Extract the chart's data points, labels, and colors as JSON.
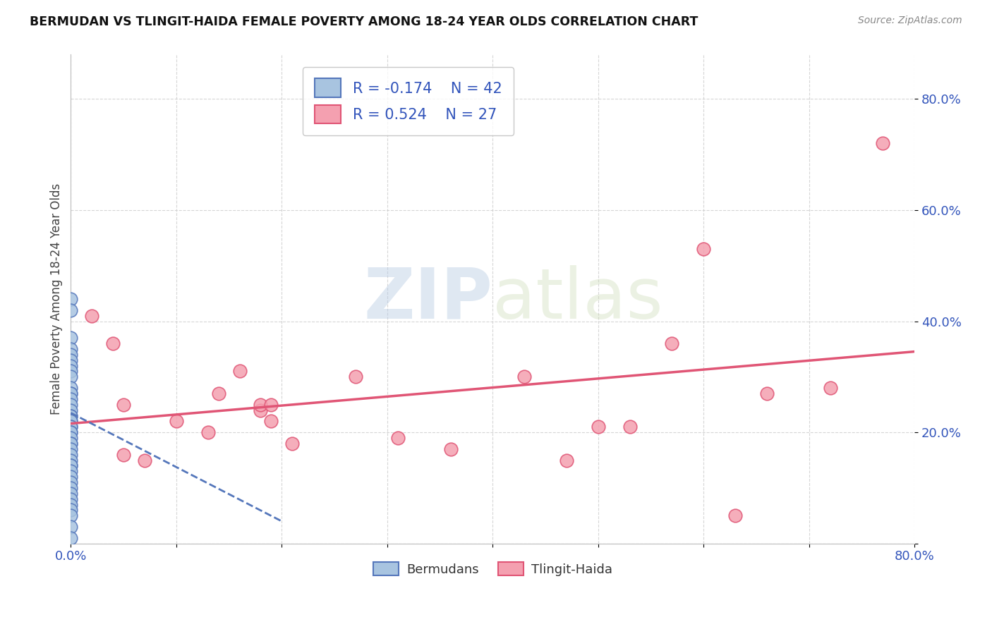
{
  "title": "BERMUDAN VS TLINGIT-HAIDA FEMALE POVERTY AMONG 18-24 YEAR OLDS CORRELATION CHART",
  "source": "Source: ZipAtlas.com",
  "ylabel": "Female Poverty Among 18-24 Year Olds",
  "xlim": [
    0.0,
    0.8
  ],
  "ylim": [
    0.0,
    0.88
  ],
  "xticks": [
    0.0,
    0.1,
    0.2,
    0.3,
    0.4,
    0.5,
    0.6,
    0.7,
    0.8
  ],
  "xticklabels": [
    "0.0%",
    "",
    "",
    "",
    "",
    "",
    "",
    "",
    "80.0%"
  ],
  "yticks": [
    0.0,
    0.2,
    0.4,
    0.6,
    0.8
  ],
  "yticklabels": [
    "",
    "20.0%",
    "40.0%",
    "60.0%",
    "80.0%"
  ],
  "bermudans_x": [
    0.0,
    0.0,
    0.0,
    0.0,
    0.0,
    0.0,
    0.0,
    0.0,
    0.0,
    0.0,
    0.0,
    0.0,
    0.0,
    0.0,
    0.0,
    0.0,
    0.0,
    0.0,
    0.0,
    0.0,
    0.0,
    0.0,
    0.0,
    0.0,
    0.0,
    0.0,
    0.0,
    0.0,
    0.0,
    0.0,
    0.0,
    0.0,
    0.0,
    0.0,
    0.0,
    0.0,
    0.0,
    0.0,
    0.0,
    0.0,
    0.0,
    0.0
  ],
  "bermudans_y": [
    0.44,
    0.42,
    0.37,
    0.35,
    0.34,
    0.33,
    0.32,
    0.31,
    0.3,
    0.28,
    0.27,
    0.27,
    0.26,
    0.25,
    0.24,
    0.23,
    0.23,
    0.22,
    0.22,
    0.21,
    0.21,
    0.2,
    0.2,
    0.19,
    0.18,
    0.18,
    0.17,
    0.16,
    0.15,
    0.14,
    0.14,
    0.13,
    0.12,
    0.11,
    0.1,
    0.09,
    0.08,
    0.07,
    0.06,
    0.05,
    0.03,
    0.01
  ],
  "tlingit_x": [
    0.02,
    0.04,
    0.05,
    0.05,
    0.07,
    0.1,
    0.13,
    0.14,
    0.16,
    0.18,
    0.18,
    0.19,
    0.19,
    0.21,
    0.27,
    0.31,
    0.36,
    0.43,
    0.47,
    0.5,
    0.53,
    0.57,
    0.6,
    0.63,
    0.66,
    0.72,
    0.77
  ],
  "tlingit_y": [
    0.41,
    0.36,
    0.25,
    0.16,
    0.15,
    0.22,
    0.2,
    0.27,
    0.31,
    0.24,
    0.25,
    0.25,
    0.22,
    0.18,
    0.3,
    0.19,
    0.17,
    0.3,
    0.15,
    0.21,
    0.21,
    0.36,
    0.53,
    0.05,
    0.27,
    0.28,
    0.72
  ],
  "bermudans_color": "#a8c4e0",
  "tlingit_color": "#f4a0b0",
  "bermudans_line_color": "#5577bb",
  "tlingit_line_color": "#e05575",
  "R_bermudans": -0.174,
  "N_bermudans": 42,
  "R_tlingit": 0.524,
  "N_tlingit": 27,
  "legend_label_bermudans": "Bermudans",
  "legend_label_tlingit": "Tlingit-Haida",
  "watermark_zip": "ZIP",
  "watermark_atlas": "atlas",
  "background_color": "#ffffff",
  "grid_color": "#cccccc",
  "bermudan_line_x0": 0.0,
  "bermudan_line_x1": 0.2,
  "bermudan_line_y0": 0.235,
  "bermudan_line_y1": 0.04
}
